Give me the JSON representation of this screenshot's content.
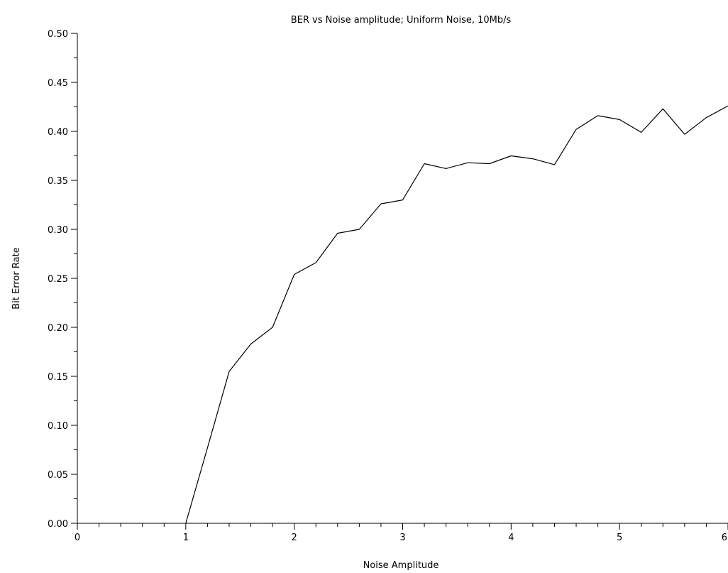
{
  "chart_data": {
    "type": "line",
    "title": "BER vs Noise amplitude; Uniform Noise, 10Mb/s",
    "xlabel": "Noise Amplitude",
    "ylabel": "Bit Error Rate",
    "xlim": [
      0,
      6
    ],
    "ylim": [
      0,
      0.5
    ],
    "xticks": [
      0,
      1,
      2,
      3,
      4,
      5,
      6
    ],
    "xtick_labels": [
      "0",
      "1",
      "2",
      "3",
      "4",
      "5",
      "6"
    ],
    "yticks": [
      0,
      0.05,
      0.1,
      0.15,
      0.2,
      0.25,
      0.3,
      0.35,
      0.4,
      0.45,
      0.5
    ],
    "ytick_labels": [
      "0.00",
      "0.05",
      "0.10",
      "0.15",
      "0.20",
      "0.25",
      "0.30",
      "0.35",
      "0.40",
      "0.45",
      "0.50"
    ],
    "grid": false,
    "line_color": "#000000",
    "series": [
      {
        "x": [
          0,
          0.2,
          0.4,
          0.6,
          0.8,
          1.0,
          1.2,
          1.4,
          1.6,
          1.8,
          2.0,
          2.2,
          2.4,
          2.6,
          2.8,
          3.0,
          3.2,
          3.4,
          3.6,
          3.8,
          4.0,
          4.2,
          4.4,
          4.6,
          4.8,
          5.0,
          5.2,
          5.4,
          5.6,
          5.8,
          6.0
        ],
        "values": [
          0,
          0,
          0,
          0,
          0,
          0,
          0.077,
          0.155,
          0.183,
          0.2,
          0.254,
          0.266,
          0.296,
          0.3,
          0.326,
          0.33,
          0.367,
          0.362,
          0.368,
          0.367,
          0.375,
          0.372,
          0.366,
          0.402,
          0.416,
          0.412,
          0.399,
          0.423,
          0.397,
          0.414,
          0.426
        ]
      }
    ]
  }
}
